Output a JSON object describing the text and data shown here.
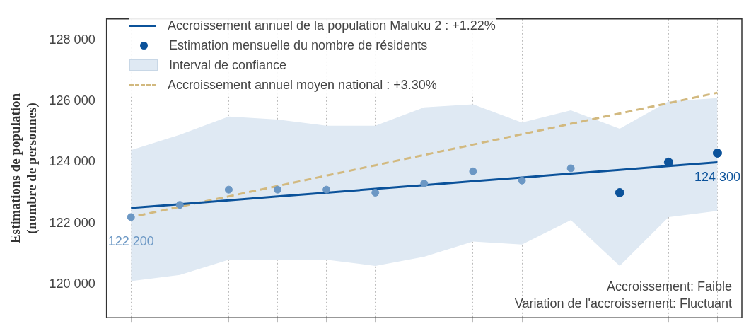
{
  "chart_data": {
    "type": "line",
    "ylabel": "Estimations de population\n(nombre de personnes)",
    "categories": [
      null,
      null,
      null,
      null,
      null,
      null,
      null,
      null,
      null,
      null,
      null,
      null,
      null
    ],
    "series": [
      {
        "name": "Accroissement annuel de la population Maluku 2 : +1.22%",
        "color": "#0b529a",
        "line_style": "solid",
        "values": [
          122500,
          122625,
          122750,
          122875,
          123000,
          123125,
          123250,
          123375,
          123500,
          123625,
          123750,
          123875,
          124000
        ]
      },
      {
        "type": "scatter",
        "name": "Estimation mensuelle du nombre de résidents",
        "color": "#0b529a",
        "marker": "circle",
        "colors": [
          "#6b97c4",
          "#6b97c4",
          "#6b97c4",
          "#6b97c4",
          "#6b97c4",
          "#6b97c4",
          "#6b97c4",
          "#6b97c4",
          "#6b97c4",
          "#6b97c4",
          "#0b529a",
          "#0b529a",
          "#0b529a"
        ],
        "values": [
          122200,
          122600,
          123100,
          123100,
          123100,
          123000,
          123300,
          123700,
          123400,
          123800,
          123000,
          124000,
          124300
        ],
        "value_labels": [
          "122 200",
          null,
          null,
          null,
          null,
          null,
          null,
          null,
          null,
          null,
          null,
          null,
          "124 300"
        ]
      },
      {
        "type": "area",
        "name": "Interval de confiance",
        "color": "#dfe9f3",
        "values": [
          null,
          null,
          null,
          null,
          null,
          null,
          null,
          null,
          null,
          null,
          null,
          null,
          null
        ],
        "lower": [
          120100,
          120300,
          120800,
          120800,
          120800,
          120600,
          120900,
          121400,
          121300,
          122100,
          120600,
          122200,
          122400
        ],
        "upper": [
          124400,
          124900,
          125500,
          125400,
          125200,
          125200,
          125800,
          125900,
          125300,
          125700,
          125100,
          126000,
          126100
        ]
      },
      {
        "name": "Accroissement annuel moyen national : +3.30%",
        "color": "#d2b97f",
        "line_style": "dashed",
        "values": [
          122200,
          122540,
          122880,
          123220,
          123560,
          123900,
          124240,
          124580,
          124920,
          125260,
          125600,
          125940,
          126280
        ]
      }
    ],
    "ylim": [
      118900,
      128700
    ],
    "yticks": [
      {
        "value": 120000,
        "label": "120 000"
      },
      {
        "value": 122000,
        "label": "122 000"
      },
      {
        "value": 124000,
        "label": "124 000"
      },
      {
        "value": 126000,
        "label": "126 000"
      },
      {
        "value": 128000,
        "label": "128 000"
      }
    ],
    "grid": "x",
    "legend": "top left",
    "tick_labels": "y",
    "annotations": [
      "Accroissement: Faible",
      "Variation de l'accroissement: Fluctuant"
    ]
  }
}
